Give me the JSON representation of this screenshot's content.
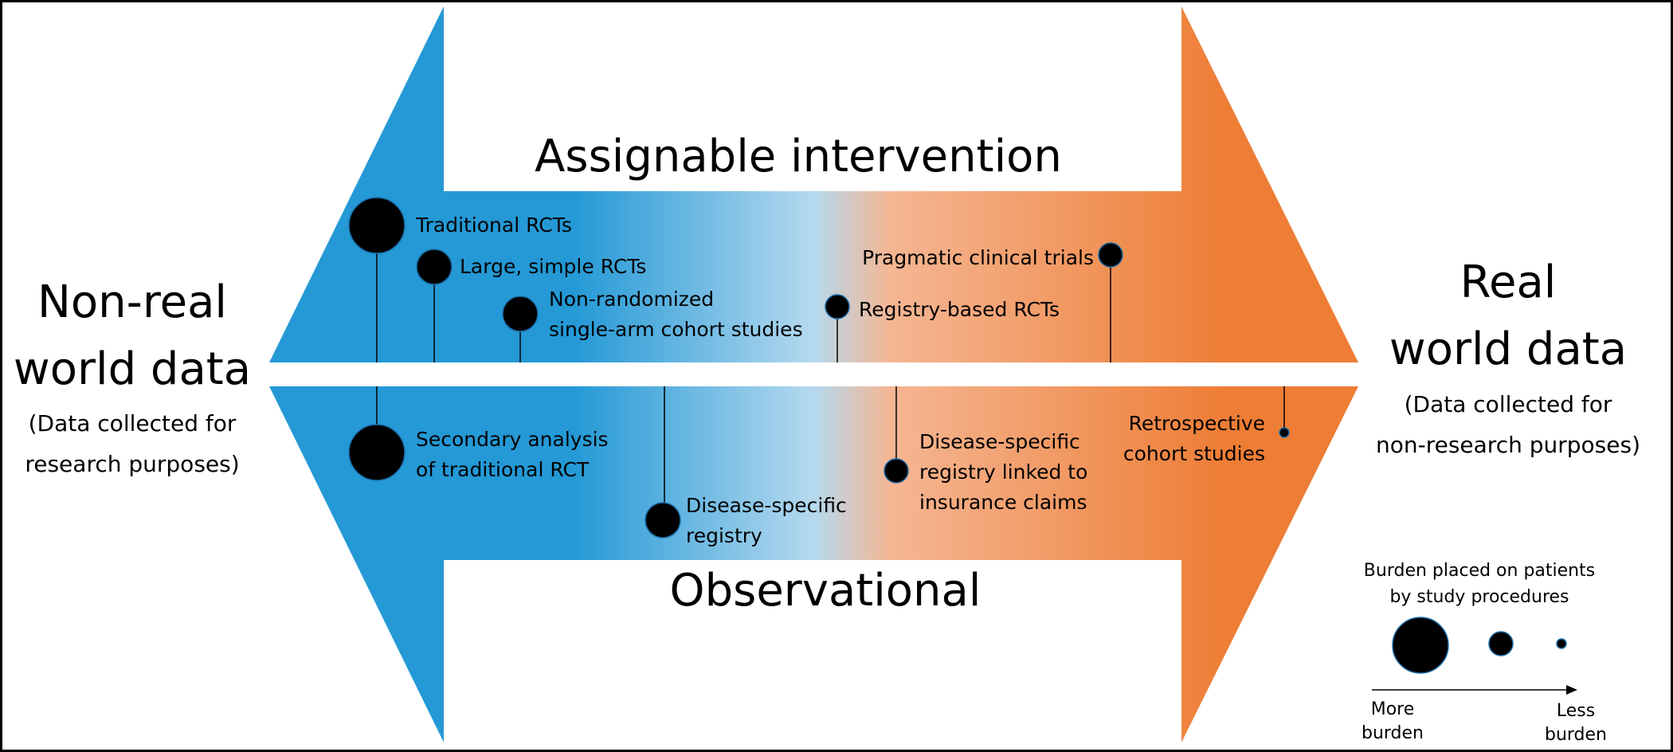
{
  "colors": {
    "blue": "#2499d6",
    "light_blue": "#b5d9ef",
    "light_orange": "#f5b693",
    "orange": "#ee7d35",
    "border": "#000000"
  },
  "header": {
    "top": "Assignable intervention",
    "bottom": "Observational"
  },
  "left_side": {
    "title_line1": "Non-real",
    "title_line2": "world data",
    "sub_line1": "(Data collected for",
    "sub_line2": "research purposes)"
  },
  "right_side": {
    "title_line1": "Real",
    "title_line2": "world data",
    "sub_line1": "(Data collected for",
    "sub_line2": "non-research purposes)"
  },
  "studies": {
    "traditional_rcts": "Traditional RCTs",
    "large_simple_rcts": "Large, simple RCTs",
    "nonrandomized_line1": "Non-randomized",
    "nonrandomized_line2": "single-arm cohort studies",
    "registry_based_rcts": "Registry-based RCTs",
    "pragmatic_trials": "Pragmatic clinical trials",
    "secondary_line1": "Secondary analysis",
    "secondary_line2": "of traditional RCT",
    "disease_registry_line1": "Disease-specific",
    "disease_registry_line2": "registry",
    "linked_line1": "Disease-specific",
    "linked_line2": "registry linked to",
    "linked_line3": "insurance claims",
    "retro_line1": "Retrospective",
    "retro_line2": "cohort studies"
  },
  "legend": {
    "title_line1": "Burden placed on patients",
    "title_line2": "by study procedures",
    "more_line1": "More",
    "more_line2": "burden",
    "less_line1": "Less",
    "less_line2": "burden"
  }
}
